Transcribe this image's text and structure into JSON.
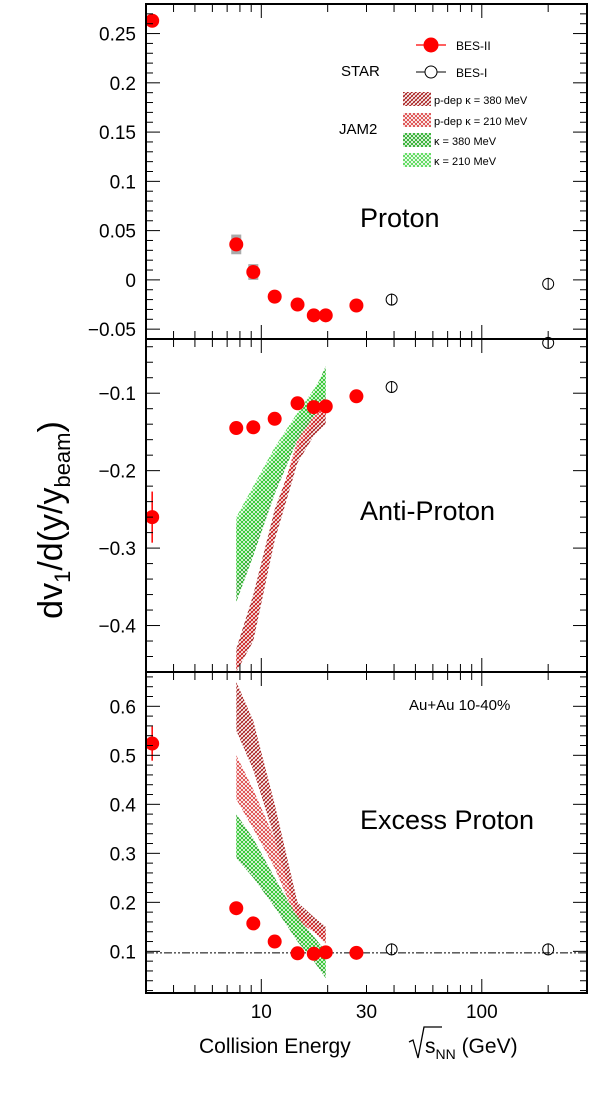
{
  "figure": {
    "y_axis_label": {
      "main": "dv",
      "sub1": "1",
      "mid": "/d(y/y",
      "sub2": "beam",
      "end": ")"
    },
    "x_axis_label": {
      "left": "Collision Energy",
      "sqrt_s": "s",
      "sub_nn": "NN",
      "unit": " (GeV)"
    },
    "legend": {
      "star_label": "STAR",
      "jam_label": "JAM2",
      "entries": [
        {
          "label": "BES-II"
        },
        {
          "label": "BES-I"
        },
        {
          "label": "p-dep   κ = 380 MeV",
          "color": "#a31515"
        },
        {
          "label": "p-dep   κ = 210 MeV",
          "color": "#d42020"
        },
        {
          "label": "κ = 380 MeV",
          "color": "#1fa81f"
        },
        {
          "label": "κ = 210 MeV",
          "color": "#2fd02f"
        }
      ]
    },
    "annotation": "Au+Au 10-40%"
  },
  "chart_data": [
    {
      "type": "scatter",
      "title": "Proton",
      "x_scale": "log",
      "xlim": [
        3,
        300
      ],
      "ylim": [
        -0.06,
        0.28
      ],
      "y_ticks": [
        "0.25",
        "0.2",
        "0.15",
        "0.1",
        "0.05",
        "0",
        "−0.05"
      ],
      "y_tick_values": [
        0.25,
        0.2,
        0.15,
        0.1,
        0.05,
        0,
        -0.05
      ],
      "series": [
        {
          "name": "BES-II",
          "x": [
            3.2,
            7.7,
            9.2,
            11.5,
            14.6,
            17.3,
            19.6,
            27
          ],
          "y": [
            0.263,
            0.036,
            0.008,
            -0.017,
            -0.025,
            -0.036,
            -0.036,
            -0.026
          ],
          "sys": [
            0.003,
            0.01,
            0.008,
            0.002,
            0.002,
            0.002,
            0.002,
            0.002
          ]
        },
        {
          "name": "BES-I",
          "x": [
            39,
            200
          ],
          "y": [
            -0.02,
            -0.004
          ]
        }
      ]
    },
    {
      "type": "scatter",
      "title": "Anti-Proton",
      "x_scale": "log",
      "xlim": [
        3,
        300
      ],
      "ylim": [
        -0.46,
        -0.03
      ],
      "y_ticks": [
        "−0.1",
        "−0.2",
        "−0.3",
        "−0.4"
      ],
      "y_tick_values": [
        -0.1,
        -0.2,
        -0.3,
        -0.4
      ],
      "series": [
        {
          "name": "BES-II",
          "x": [
            3.2,
            7.7,
            9.2,
            11.5,
            14.6,
            17.3,
            19.6,
            27
          ],
          "y": [
            -0.26,
            -0.145,
            -0.144,
            -0.133,
            -0.113,
            -0.118,
            -0.117,
            -0.104
          ],
          "err": [
            0.033,
            0.004,
            0.004,
            0.004,
            0.004,
            0.004,
            0.004,
            0.004
          ]
        },
        {
          "name": "BES-I",
          "x": [
            39,
            200
          ],
          "y": [
            -0.092,
            -0.035
          ]
        },
        {
          "name": "p-dep κ = 380 MeV",
          "band": true,
          "x": [
            7.7,
            9.2,
            11.5,
            14.6,
            17.3,
            19.6
          ],
          "ylow": [
            -0.46,
            -0.42,
            -0.29,
            -0.19,
            -0.155,
            -0.14
          ],
          "yhigh": [
            -0.43,
            -0.36,
            -0.25,
            -0.17,
            -0.135,
            -0.12
          ]
        },
        {
          "name": "p-dep κ = 210 MeV",
          "band": true,
          "x": [
            7.7,
            9.2,
            11.5,
            14.6,
            17.3,
            19.6
          ],
          "ylow": [
            -0.46,
            -0.41,
            -0.28,
            -0.18,
            -0.145,
            -0.13
          ],
          "yhigh": [
            -0.44,
            -0.37,
            -0.26,
            -0.16,
            -0.125,
            -0.11
          ]
        },
        {
          "name": "κ = 380 MeV",
          "band": true,
          "x": [
            7.7,
            9.2,
            11.5,
            14.6,
            17.3,
            19.6
          ],
          "ylow": [
            -0.37,
            -0.31,
            -0.23,
            -0.16,
            -0.13,
            -0.11
          ],
          "yhigh": [
            -0.27,
            -0.23,
            -0.18,
            -0.13,
            -0.1,
            -0.065
          ]
        },
        {
          "name": "κ = 210 MeV",
          "band": true,
          "x": [
            7.7,
            9.2,
            11.5,
            14.6,
            17.3,
            19.6
          ],
          "ylow": [
            -0.34,
            -0.29,
            -0.22,
            -0.15,
            -0.12,
            -0.1
          ],
          "yhigh": [
            -0.26,
            -0.22,
            -0.17,
            -0.125,
            -0.095,
            -0.07
          ]
        }
      ]
    },
    {
      "type": "scatter",
      "title": "Excess Proton",
      "x_scale": "log",
      "xlim": [
        3,
        300
      ],
      "ylim": [
        0.015,
        0.67
      ],
      "x_ticks": [
        "10",
        "30",
        "100"
      ],
      "x_tick_values": [
        10,
        30,
        100
      ],
      "y_ticks": [
        "0.6",
        "0.5",
        "0.4",
        "0.3",
        "0.2",
        "0.1"
      ],
      "y_tick_values": [
        0.6,
        0.5,
        0.4,
        0.3,
        0.2,
        0.1
      ],
      "reference_line": 0.097,
      "series": [
        {
          "name": "BES-II",
          "x": [
            3.2,
            7.7,
            9.2,
            11.5,
            14.6,
            17.3,
            19.6,
            27
          ],
          "y": [
            0.524,
            0.188,
            0.157,
            0.12,
            0.096,
            0.095,
            0.098,
            0.097
          ],
          "err": [
            0.035,
            0.008,
            0.006,
            0.004,
            0.004,
            0.004,
            0.004,
            0.004
          ]
        },
        {
          "name": "BES-I",
          "x": [
            39,
            200
          ],
          "y": [
            0.104,
            0.104
          ]
        },
        {
          "name": "p-dep κ = 380 MeV",
          "band": true,
          "x": [
            7.7,
            9.2,
            11.5,
            14.6,
            17.3,
            19.6
          ],
          "ylow": [
            0.55,
            0.47,
            0.33,
            0.17,
            0.14,
            0.12
          ],
          "yhigh": [
            0.65,
            0.57,
            0.4,
            0.2,
            0.17,
            0.15
          ]
        },
        {
          "name": "p-dep κ = 210 MeV",
          "band": true,
          "x": [
            7.7,
            9.2,
            11.5,
            14.6,
            17.3,
            19.6
          ],
          "ylow": [
            0.41,
            0.35,
            0.27,
            0.16,
            0.14,
            0.115
          ],
          "yhigh": [
            0.5,
            0.43,
            0.33,
            0.19,
            0.16,
            0.14
          ]
        },
        {
          "name": "κ = 380 MeV",
          "band": true,
          "x": [
            7.7,
            9.2,
            11.5,
            14.6,
            17.3,
            19.6
          ],
          "ylow": [
            0.29,
            0.25,
            0.19,
            0.12,
            0.08,
            0.045
          ],
          "yhigh": [
            0.38,
            0.33,
            0.25,
            0.17,
            0.13,
            0.1
          ]
        },
        {
          "name": "κ = 210 MeV",
          "band": true,
          "x": [
            7.7,
            9.2,
            11.5,
            14.6,
            17.3,
            19.6
          ],
          "ylow": [
            0.3,
            0.26,
            0.2,
            0.13,
            0.09,
            0.06
          ],
          "yhigh": [
            0.37,
            0.32,
            0.24,
            0.16,
            0.12,
            0.09
          ]
        }
      ]
    }
  ]
}
